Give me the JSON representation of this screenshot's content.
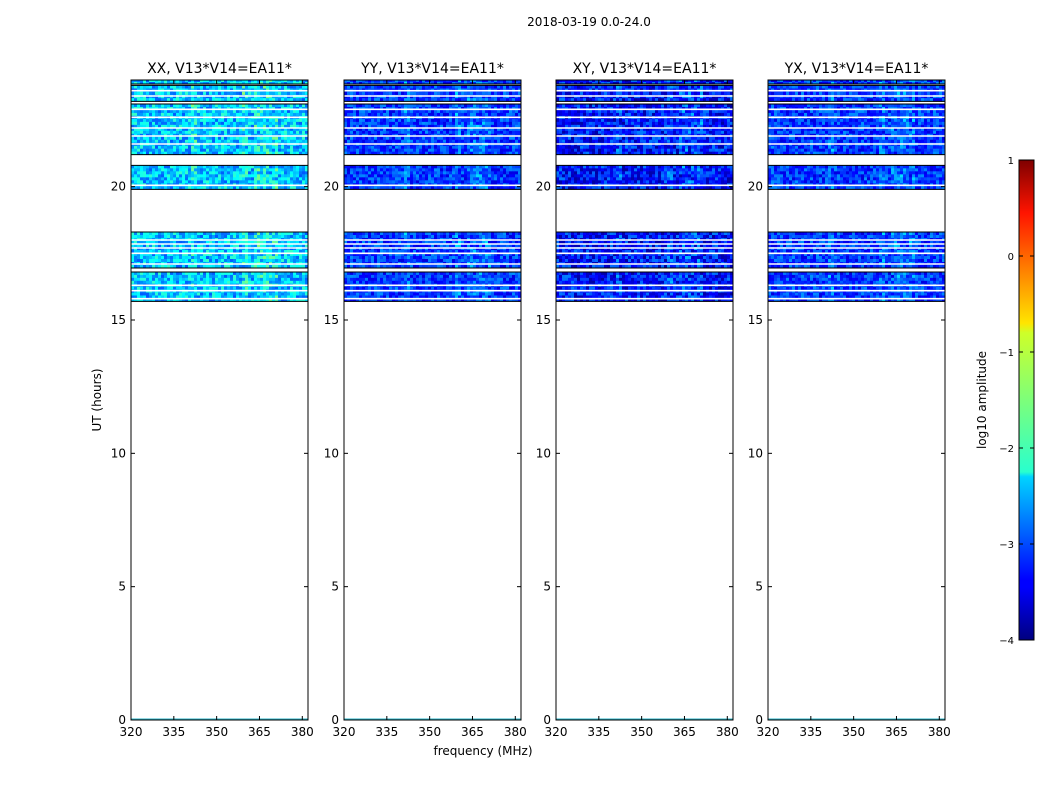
{
  "figure_title": "2018-03-19 0.0-24.0",
  "chart_data": {
    "type": "heatmap",
    "title": "2018-03-19 0.0-24.0",
    "xlabel": "frequency (MHz)",
    "ylabel": "UT (hours)",
    "xlim": [
      320,
      382
    ],
    "ylim": [
      0,
      24
    ],
    "xticks": [
      320,
      335,
      350,
      365,
      380
    ],
    "yticks": [
      0,
      5,
      10,
      15,
      20
    ],
    "panels": [
      {
        "title": "XX, V13*V14=EA11*",
        "polarization": "XX",
        "mean_log_amplitude": -2.4,
        "contrast": 0.55
      },
      {
        "title": "YY, V13*V14=EA11*",
        "polarization": "YY",
        "mean_log_amplitude": -3.1,
        "contrast": 0.45
      },
      {
        "title": "XY, V13*V14=EA11*",
        "polarization": "XY",
        "mean_log_amplitude": -3.3,
        "contrast": 0.55
      },
      {
        "title": "YX, V13*V14=EA11*",
        "polarization": "YX",
        "mean_log_amplitude": -3.1,
        "contrast": 0.45
      }
    ],
    "data_blocks_ut": [
      [
        15.7,
        16.8
      ],
      [
        16.95,
        18.3
      ],
      [
        19.9,
        20.8
      ],
      [
        21.2,
        23.1
      ],
      [
        23.2,
        23.8
      ],
      [
        23.85,
        24.0
      ]
    ],
    "flag_lines_ut": [
      15.8,
      16.1,
      16.3,
      17.1,
      17.5,
      17.7,
      17.85,
      18.0,
      20.05,
      21.6,
      21.9,
      22.2,
      22.6,
      22.9,
      23.4,
      23.6
    ],
    "bright_frequencies_mhz": [
      342,
      360,
      364,
      367,
      370
    ],
    "colorbar": {
      "label": "log10 amplitude",
      "range": [
        -4,
        1
      ],
      "ticks": [
        "1",
        "0",
        "−1",
        "−2",
        "−3",
        "−4"
      ],
      "colormap": "jet"
    }
  }
}
